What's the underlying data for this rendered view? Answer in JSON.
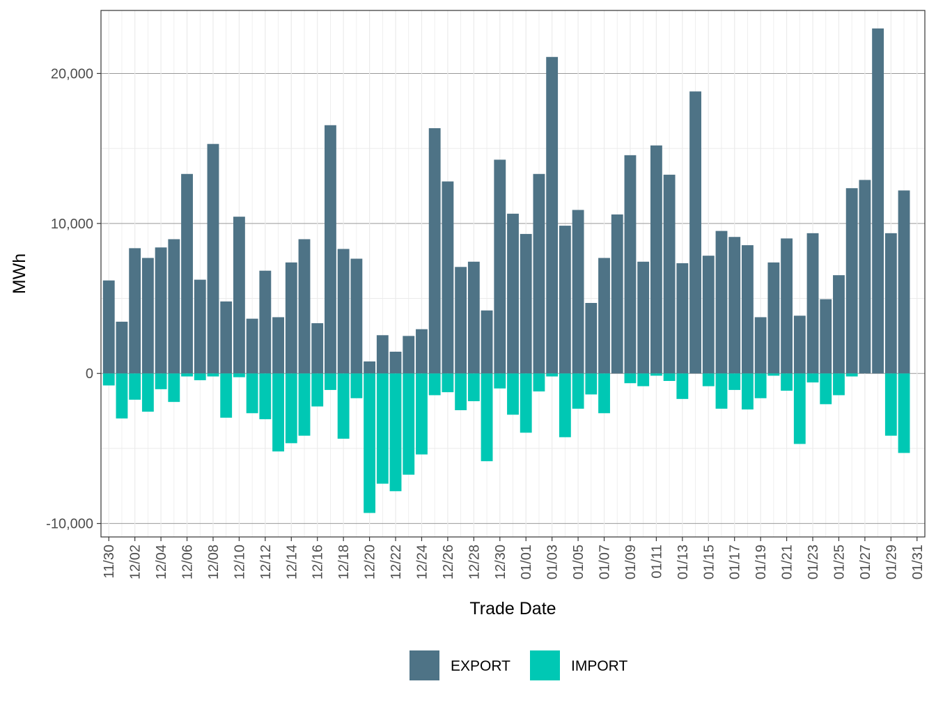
{
  "chart_data": {
    "type": "bar",
    "stacked": true,
    "xlabel": "Trade Date",
    "ylabel": "MWh",
    "ylim": [
      -10900,
      24200
    ],
    "yticks": [
      -10000,
      0,
      10000,
      20000
    ],
    "ytick_labels": [
      "-10,000",
      "0",
      "10,000",
      "20,000"
    ],
    "grid": true,
    "legend_position": "bottom",
    "x": [
      "11/30",
      "12/01",
      "12/02",
      "12/03",
      "12/04",
      "12/05",
      "12/06",
      "12/07",
      "12/08",
      "12/09",
      "12/10",
      "12/11",
      "12/12",
      "12/13",
      "12/14",
      "12/15",
      "12/16",
      "12/17",
      "12/18",
      "12/19",
      "12/20",
      "12/21",
      "12/22",
      "12/23",
      "12/24",
      "12/25",
      "12/26",
      "12/27",
      "12/28",
      "12/29",
      "12/30",
      "12/31",
      "01/01",
      "01/02",
      "01/03",
      "01/04",
      "01/05",
      "01/06",
      "01/07",
      "01/08",
      "01/09",
      "01/10",
      "01/11",
      "01/12",
      "01/13",
      "01/14",
      "01/15",
      "01/16",
      "01/17",
      "01/18",
      "01/19",
      "01/20",
      "01/21",
      "01/22",
      "01/23",
      "01/24",
      "01/25",
      "01/26",
      "01/27",
      "01/28",
      "01/29",
      "01/30",
      "01/31"
    ],
    "x_tick_labels": [
      "11/30",
      "12/02",
      "12/04",
      "12/06",
      "12/08",
      "12/10",
      "12/12",
      "12/14",
      "12/16",
      "12/18",
      "12/20",
      "12/22",
      "12/24",
      "12/26",
      "12/28",
      "12/30",
      "01/01",
      "01/03",
      "01/05",
      "01/07",
      "01/09",
      "01/11",
      "01/13",
      "01/15",
      "01/17",
      "01/19",
      "01/21",
      "01/23",
      "01/25",
      "01/27",
      "01/29",
      "01/31"
    ],
    "series": [
      {
        "name": "EXPORT",
        "color": "#4e7386",
        "values": [
          6200,
          3450,
          8350,
          7700,
          8400,
          8950,
          13300,
          6250,
          15300,
          4800,
          10450,
          3650,
          6850,
          3750,
          7400,
          8950,
          3350,
          16550,
          8300,
          7650,
          800,
          2550,
          1450,
          2500,
          2950,
          16350,
          12800,
          7100,
          7450,
          4200,
          14250,
          10650,
          9300,
          13300,
          21100,
          9850,
          10900,
          4700,
          7700,
          10600,
          14550,
          7450,
          15200,
          13250,
          7350,
          18800,
          7850,
          9500,
          9100,
          8550,
          3750,
          7400,
          9000,
          3850,
          9350,
          4950,
          6550,
          12350,
          12900,
          23000,
          9350,
          12200,
          0
        ]
      },
      {
        "name": "IMPORT",
        "color": "#00c8b4",
        "values": [
          -800,
          -3000,
          -1750,
          -2550,
          -1050,
          -1900,
          -200,
          -450,
          -200,
          -2950,
          -250,
          -2650,
          -3050,
          -5200,
          -4650,
          -4150,
          -2200,
          -1100,
          -4350,
          -1650,
          -9300,
          -7350,
          -7850,
          -6750,
          -5400,
          -1450,
          -1250,
          -2450,
          -1850,
          -5850,
          -1000,
          -2750,
          -3950,
          -1200,
          -200,
          -4250,
          -2350,
          -1400,
          -2650,
          0,
          -650,
          -850,
          -150,
          -500,
          -1700,
          0,
          -850,
          -2350,
          -1100,
          -2400,
          -1650,
          -150,
          -1150,
          -4700,
          -600,
          -2050,
          -1450,
          -200,
          0,
          0,
          -4150,
          -5300,
          0
        ]
      }
    ]
  }
}
